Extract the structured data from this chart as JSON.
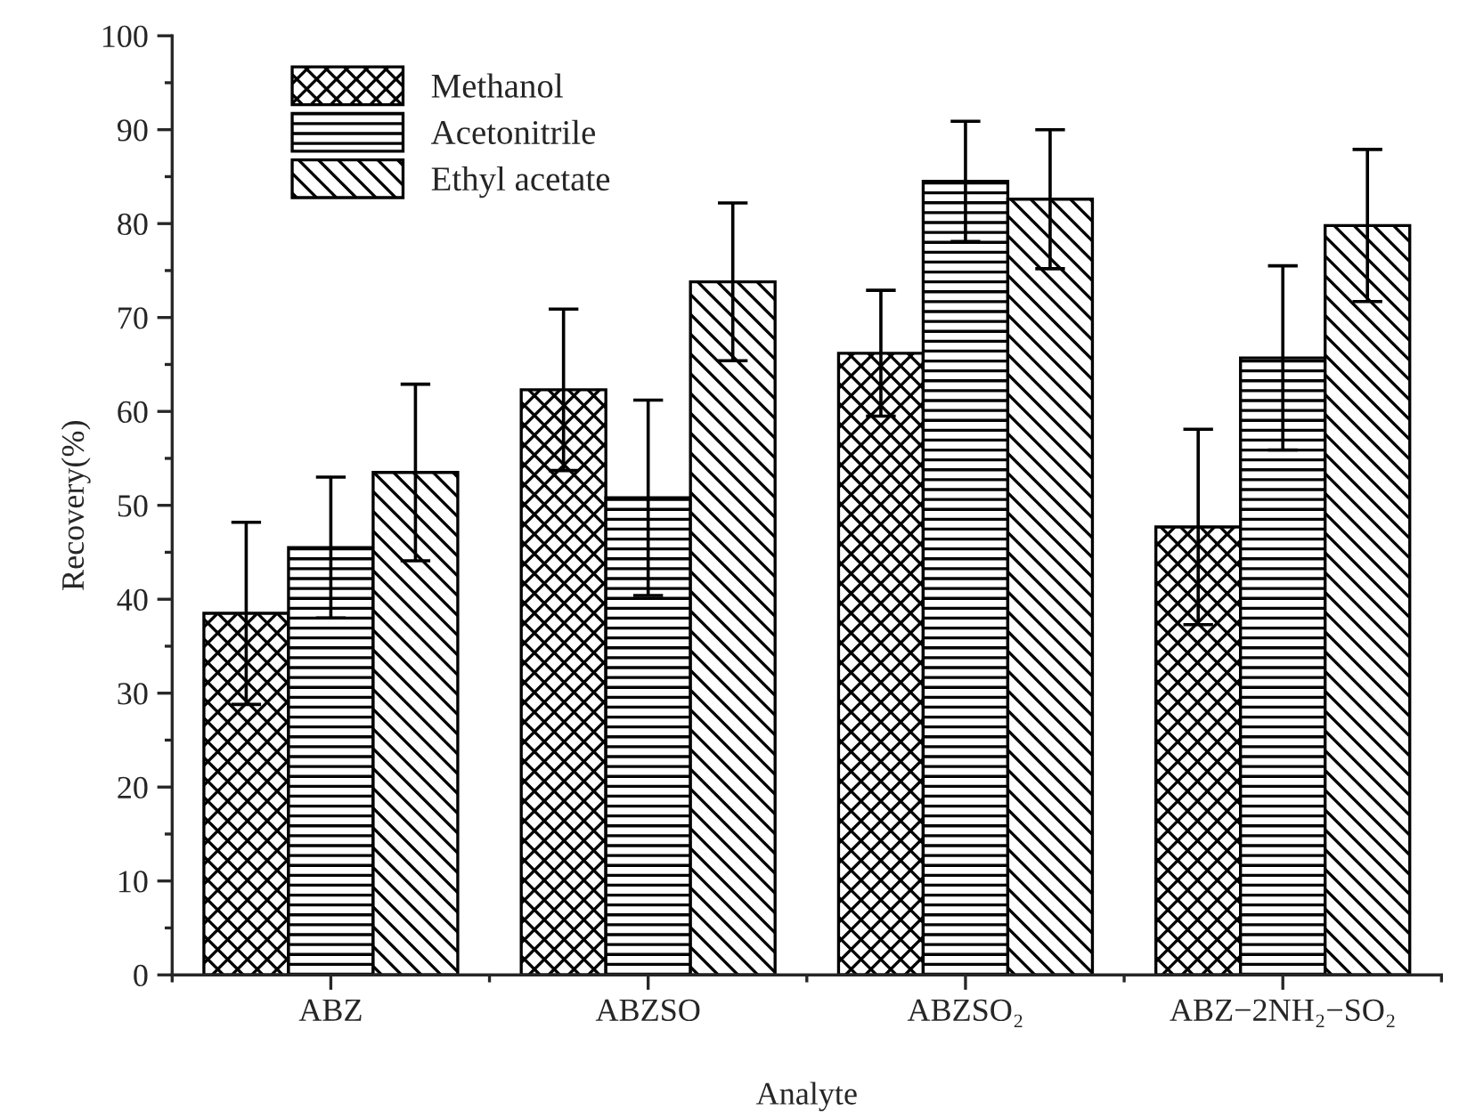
{
  "chart_data": {
    "type": "bar",
    "xlabel": "Analyte",
    "ylabel": "Recovery(%)",
    "categories": [
      "ABZ",
      "ABZSO",
      "ABZSO₂",
      "ABZ−2NH₂−SO₂"
    ],
    "series": [
      {
        "name": "Methanol",
        "color": "#000000",
        "values": [
          38.5,
          62.3,
          66.2,
          47.7
        ],
        "errors": [
          9.7,
          8.6,
          6.7,
          10.4
        ]
      },
      {
        "name": "Acetonitrile",
        "color": "#000000",
        "values": [
          45.5,
          50.8,
          84.5,
          65.7
        ],
        "errors": [
          7.5,
          10.4,
          6.4,
          9.8
        ]
      },
      {
        "name": "Ethyl acetate",
        "color": "#000000",
        "values": [
          53.5,
          73.8,
          82.6,
          79.8
        ],
        "errors": [
          9.4,
          8.4,
          7.4,
          8.1
        ]
      }
    ],
    "ylim": [
      0,
      100
    ],
    "yticks": [
      0,
      10,
      20,
      30,
      40,
      50,
      60,
      70,
      80,
      90,
      100
    ],
    "legend": "top left",
    "grid": false
  }
}
